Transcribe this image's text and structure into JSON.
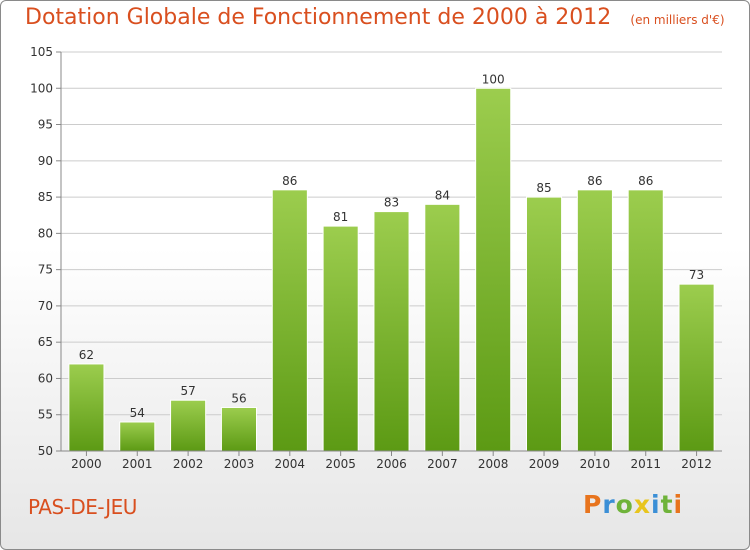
{
  "title": "Dotation Globale de Fonctionnement de 2000 à 2012",
  "unit_note": "(en milliers d'€)",
  "commune": "PAS-DE-JEU",
  "logo_letters": [
    "P",
    "r",
    "o",
    "x",
    "i",
    "t",
    "i"
  ],
  "colors": {
    "title": "#d94f1f",
    "bar_top": "#9ccd4e",
    "bar_bottom": "#5c9a14",
    "grid": "#cccccc",
    "axis": "#888888"
  },
  "chart_data": {
    "type": "bar",
    "categories": [
      "2000",
      "2001",
      "2002",
      "2003",
      "2004",
      "2005",
      "2006",
      "2007",
      "2008",
      "2009",
      "2010",
      "2011",
      "2012"
    ],
    "values": [
      62,
      54,
      57,
      56,
      86,
      81,
      83,
      84,
      100,
      85,
      86,
      86,
      73
    ],
    "ylim": [
      50,
      105
    ],
    "yticks": [
      50,
      55,
      60,
      65,
      70,
      75,
      80,
      85,
      90,
      95,
      100,
      105
    ],
    "grid": true,
    "legend": "none"
  }
}
